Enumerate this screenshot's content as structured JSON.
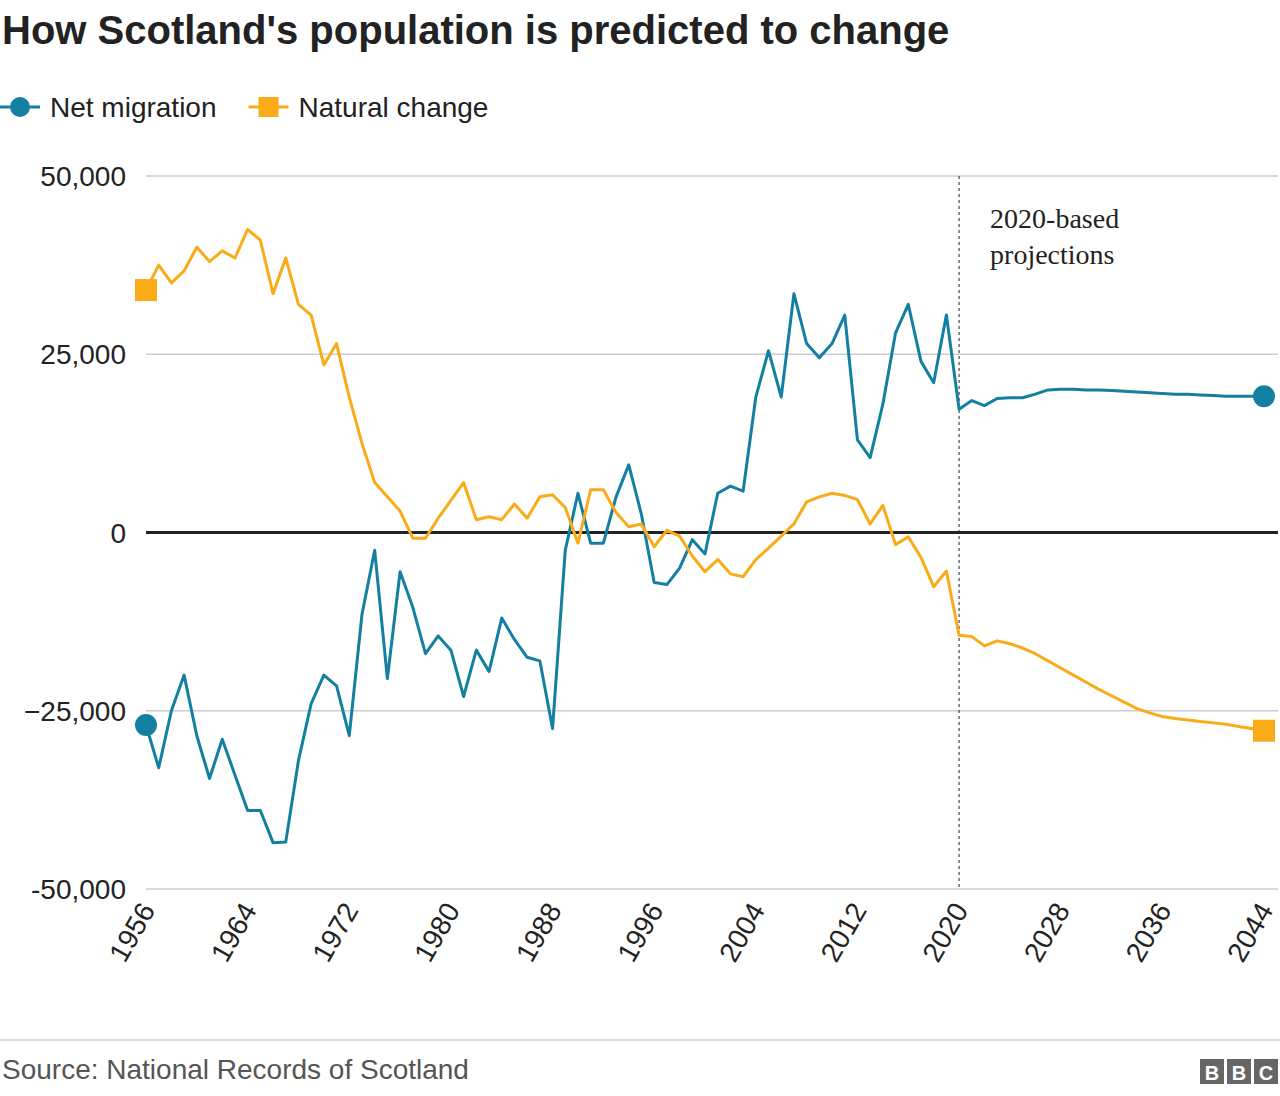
{
  "chart_data": {
    "type": "line",
    "title": "How Scotland's population is predicted to change",
    "source": "Source: National Records of Scotland",
    "logo": "BBC",
    "x": [
      1956,
      1957,
      1958,
      1959,
      1960,
      1961,
      1962,
      1963,
      1964,
      1965,
      1966,
      1967,
      1968,
      1969,
      1970,
      1971,
      1972,
      1973,
      1974,
      1975,
      1976,
      1977,
      1978,
      1979,
      1980,
      1981,
      1982,
      1983,
      1984,
      1985,
      1986,
      1987,
      1988,
      1989,
      1990,
      1991,
      1992,
      1993,
      1994,
      1995,
      1996,
      1997,
      1998,
      1999,
      2000,
      2001,
      2002,
      2003,
      2004,
      2005,
      2006,
      2007,
      2008,
      2009,
      2010,
      2011,
      2012,
      2013,
      2014,
      2015,
      2016,
      2017,
      2018,
      2019,
      2020,
      2021,
      2022,
      2023,
      2024,
      2025,
      2026,
      2027,
      2028,
      2029,
      2030,
      2031,
      2032,
      2033,
      2034,
      2035,
      2036,
      2037,
      2038,
      2039,
      2040,
      2041,
      2042,
      2043,
      2044
    ],
    "series": [
      {
        "name": "Net migration",
        "color": "#1380a1",
        "marker": "circle",
        "values": [
          -27000,
          -33000,
          -25000,
          -20000,
          -28500,
          -34500,
          -29000,
          -34000,
          -39000,
          -39000,
          -43500,
          -43400,
          -32000,
          -24000,
          -20000,
          -21500,
          -28500,
          -11500,
          -2500,
          -20500,
          -5500,
          -10500,
          -17000,
          -14500,
          -16500,
          -23000,
          -16500,
          -19500,
          -12000,
          -15000,
          -17500,
          -18000,
          -27500,
          -2500,
          5500,
          -1500,
          -1500,
          5000,
          9500,
          2500,
          -7000,
          -7300,
          -5000,
          -1000,
          -3000,
          5500,
          6500,
          5800,
          19000,
          25500,
          19000,
          33500,
          26500,
          24500,
          26500,
          30500,
          13000,
          10500,
          18000,
          28000,
          32000,
          24000,
          21000,
          30500,
          17300,
          18500,
          17800,
          18800,
          18900,
          18900,
          19400,
          20000,
          20100,
          20100,
          20000,
          20000,
          19900,
          19800,
          19700,
          19600,
          19500,
          19400,
          19400,
          19300,
          19200,
          19100,
          19100,
          19100,
          19100
        ]
      },
      {
        "name": "Natural change",
        "color": "#faab18",
        "marker": "square",
        "values": [
          34000,
          37500,
          35000,
          36700,
          40000,
          38000,
          39500,
          38500,
          42500,
          41000,
          33500,
          38500,
          32000,
          30500,
          23500,
          26500,
          19000,
          12500,
          7000,
          5000,
          3000,
          -800,
          -800,
          2000,
          4500,
          7000,
          1800,
          2200,
          1800,
          4000,
          2000,
          5000,
          5300,
          3500,
          -1500,
          6000,
          6000,
          2800,
          800,
          1200,
          -2000,
          300,
          -500,
          -3300,
          -5500,
          -3800,
          -5800,
          -6200,
          -3800,
          -2200,
          -500,
          1200,
          4300,
          5000,
          5500,
          5200,
          4600,
          1200,
          3800,
          -1700,
          -600,
          -3500,
          -7600,
          -5400,
          -14400,
          -14600,
          -15900,
          -15200,
          -15600,
          -16200,
          -17000,
          -18000,
          -19000,
          -20000,
          -21000,
          -22000,
          -22900,
          -23800,
          -24700,
          -25300,
          -25800,
          -26100,
          -26300,
          -26500,
          -26700,
          -26900,
          -27200,
          -27500,
          -27800
        ]
      }
    ],
    "xlim": [
      1956,
      2044
    ],
    "xticks": [
      1956,
      1964,
      1972,
      1980,
      1988,
      1996,
      2004,
      2012,
      2020,
      2028,
      2036,
      2044
    ],
    "ylim": [
      -50000,
      50000
    ],
    "yticks": [
      {
        "value": 50000,
        "label": "50,000"
      },
      {
        "value": 25000,
        "label": "25,000"
      },
      0,
      {
        "value": -25000,
        "label": "−25,000"
      },
      {
        "value": -50000,
        "label": "-50,000"
      }
    ],
    "grid": true,
    "legend": "top-left",
    "annotations": [
      {
        "x": 2020,
        "label": "2020-based projections"
      }
    ]
  }
}
